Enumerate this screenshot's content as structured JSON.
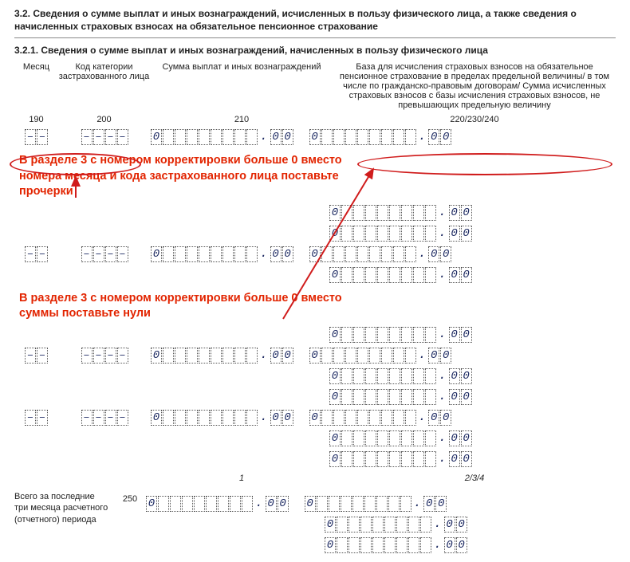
{
  "header": {
    "h1": "3.2. Сведения о сумме выплат и иных вознаграждений, исчисленных в пользу физического лица, а также сведения о начисленных страховых взносах на обязательное  пенсионное страхование",
    "h2": "3.2.1. Сведения о сумме выплат и иных вознаграждений, начисленных в пользу физического лица"
  },
  "columns": {
    "month": "Месяц",
    "code": "Код категории застрахованного лица",
    "sum": "Сумма выплат и иных вознаграждений",
    "base": "База для исчисления страховых взносов на обязательное пенсионное страхование в пределах предельной величины/ в том числе по гражданско-правовым договорам/ Сумма исчисленных страховых взносов с базы исчисления страховых взносов, не превышающих предельную величину"
  },
  "codes": {
    "c190": "190",
    "c200": "200",
    "c210": "210",
    "c220": "220/230/240"
  },
  "callouts": {
    "a": "В разделе 3 с номером корректировки больше 0 вместо номера месяца и кода застрахованного лица поставьте прочерки",
    "b": "В разделе 3 с номером корректировки больше 0 вместо суммы поставьте нули"
  },
  "totals": {
    "label": "Всего за последние три месяца расчетного (отчетного) периода",
    "code": "250",
    "sub1": "1",
    "sub2": "2/3/4"
  },
  "glyphs": {
    "dash": "–",
    "zero": "0"
  },
  "style": {
    "callout_color": "#e22400",
    "ellipse_color": "#d01c1c",
    "digit_color": "#1d2a62"
  },
  "rows": {
    "left_dash_count": 3,
    "left_rows_visible": 3,
    "right_rows": 12,
    "sum_int_cells": 9,
    "base_int_cells": 9
  }
}
